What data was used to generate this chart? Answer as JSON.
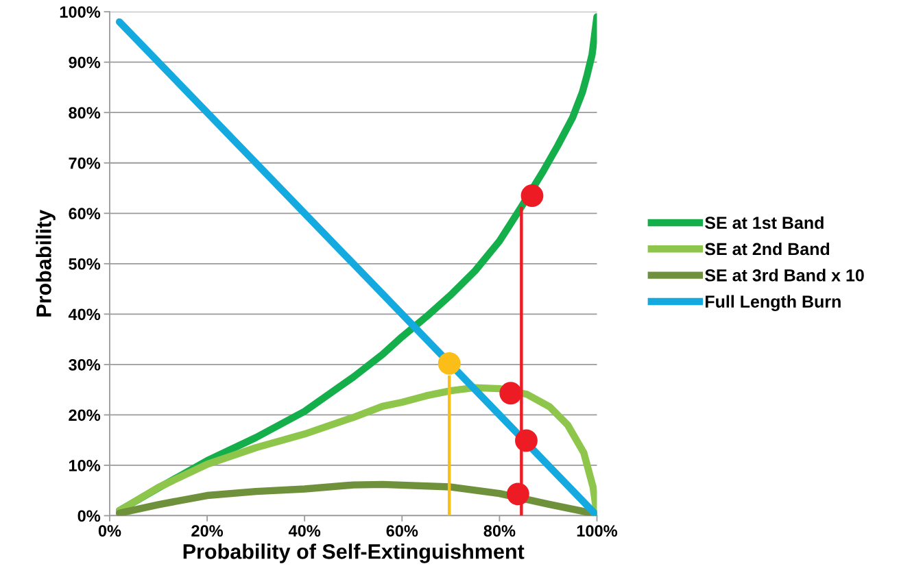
{
  "chart_data": {
    "type": "line",
    "xlabel": "Probability of Self-Extinguishment",
    "ylabel": "Probability",
    "xlim": [
      0,
      100
    ],
    "ylim": [
      0,
      100
    ],
    "xticks": [
      {
        "value": 0,
        "label": "0%"
      },
      {
        "value": 20,
        "label": "20%"
      },
      {
        "value": 40,
        "label": "40%"
      },
      {
        "value": 60,
        "label": "60%"
      },
      {
        "value": 80,
        "label": "80%"
      },
      {
        "value": 100,
        "label": "100%"
      }
    ],
    "yticks": [
      {
        "value": 0,
        "label": "0%"
      },
      {
        "value": 10,
        "label": "10%"
      },
      {
        "value": 20,
        "label": "20%"
      },
      {
        "value": 30,
        "label": "30%"
      },
      {
        "value": 40,
        "label": "40%"
      },
      {
        "value": 50,
        "label": "50%"
      },
      {
        "value": 60,
        "label": "60%"
      },
      {
        "value": 70,
        "label": "70%"
      },
      {
        "value": 80,
        "label": "80%"
      },
      {
        "value": 90,
        "label": "90%"
      },
      {
        "value": 100,
        "label": "100%"
      }
    ],
    "grid": "y",
    "legend": "right",
    "line_style": "solid",
    "series": [
      {
        "name": "SE at 1st Band",
        "color": "#14ae4b",
        "x": [
          2,
          10,
          20,
          30,
          40,
          50,
          56,
          60,
          65,
          70,
          75,
          80,
          84.5,
          89,
          92,
          95,
          97,
          98,
          99,
          100
        ],
        "values": [
          1,
          5.5,
          10.9,
          15.5,
          20.7,
          27.5,
          32,
          35.5,
          39.5,
          43.8,
          48.6,
          54.5,
          61.3,
          68.4,
          73.5,
          79,
          84,
          87.5,
          91.5,
          99
        ]
      },
      {
        "name": "SE at 2nd Band",
        "color": "#8dc64a",
        "x": [
          2,
          10,
          20,
          30,
          40,
          50,
          56,
          60,
          65,
          70,
          75,
          80,
          85.6,
          90.3,
          94,
          97.3,
          99.2,
          100
        ],
        "values": [
          1,
          5.6,
          10.2,
          13.5,
          16.2,
          19.5,
          21.7,
          22.5,
          23.8,
          24.8,
          25.4,
          25.2,
          24.1,
          21.6,
          18,
          12.5,
          5.7,
          0.3
        ]
      },
      {
        "name": "SE at 3rd Band x 10",
        "color": "#6f913b",
        "x": [
          2,
          10,
          20,
          30,
          40,
          50,
          56,
          70,
          80,
          90,
          100
        ],
        "values": [
          0.5,
          2.2,
          4.0,
          4.8,
          5.3,
          6.1,
          6.2,
          5.7,
          4.4,
          2.3,
          0.3
        ]
      },
      {
        "name": "Full Length Burn",
        "color": "#14aae0",
        "x": [
          2,
          100
        ],
        "values": [
          98,
          0
        ]
      },
      {
        "type": "line",
        "color": "#fbbd18",
        "x": [
          69.7,
          69.7
        ],
        "values": [
          0,
          27.8
        ]
      },
      {
        "type": "line",
        "color": "#ed1c24",
        "x": [
          84.5,
          84.5
        ],
        "values": [
          0,
          61.3
        ]
      },
      {
        "type": "scatter",
        "marker": "circle",
        "color": "#fbbd18",
        "x": [
          69.7
        ],
        "values": [
          30.2
        ]
      },
      {
        "type": "scatter",
        "marker": "circle",
        "color": "#ed1c24",
        "x": [
          86.7,
          82.3,
          85.5,
          83.8
        ],
        "values": [
          63.5,
          24.3,
          14.9,
          4.3
        ]
      }
    ]
  }
}
